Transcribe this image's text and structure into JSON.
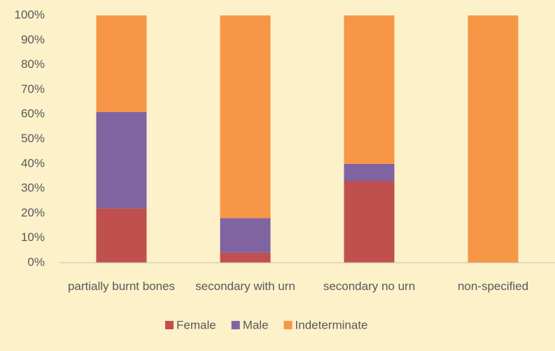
{
  "chart_data": {
    "type": "stacked_bar",
    "categories": [
      "partially burnt bones",
      "secondary with urn",
      "secondary no urn",
      "non-specified"
    ],
    "series": [
      {
        "name": "Female",
        "color": "#c0504d",
        "values": [
          22,
          4,
          33,
          0
        ]
      },
      {
        "name": "Male",
        "color": "#8064a2",
        "values": [
          39,
          14,
          7,
          0
        ]
      },
      {
        "name": "Indeterminate",
        "color": "#f79646",
        "values": [
          39,
          82,
          60,
          100
        ]
      }
    ],
    "ylim": [
      0,
      100
    ],
    "yticks": [
      {
        "value": 0,
        "label": "0%"
      },
      {
        "value": 10,
        "label": "10%"
      },
      {
        "value": 20,
        "label": "20%"
      },
      {
        "value": 30,
        "label": "30%"
      },
      {
        "value": 40,
        "label": "40%"
      },
      {
        "value": 50,
        "label": "50%"
      },
      {
        "value": 60,
        "label": "60%"
      },
      {
        "value": 70,
        "label": "70%"
      },
      {
        "value": 80,
        "label": "80%"
      },
      {
        "value": 90,
        "label": "90%"
      },
      {
        "value": 100,
        "label": "100%"
      }
    ],
    "legend": "bottom"
  }
}
